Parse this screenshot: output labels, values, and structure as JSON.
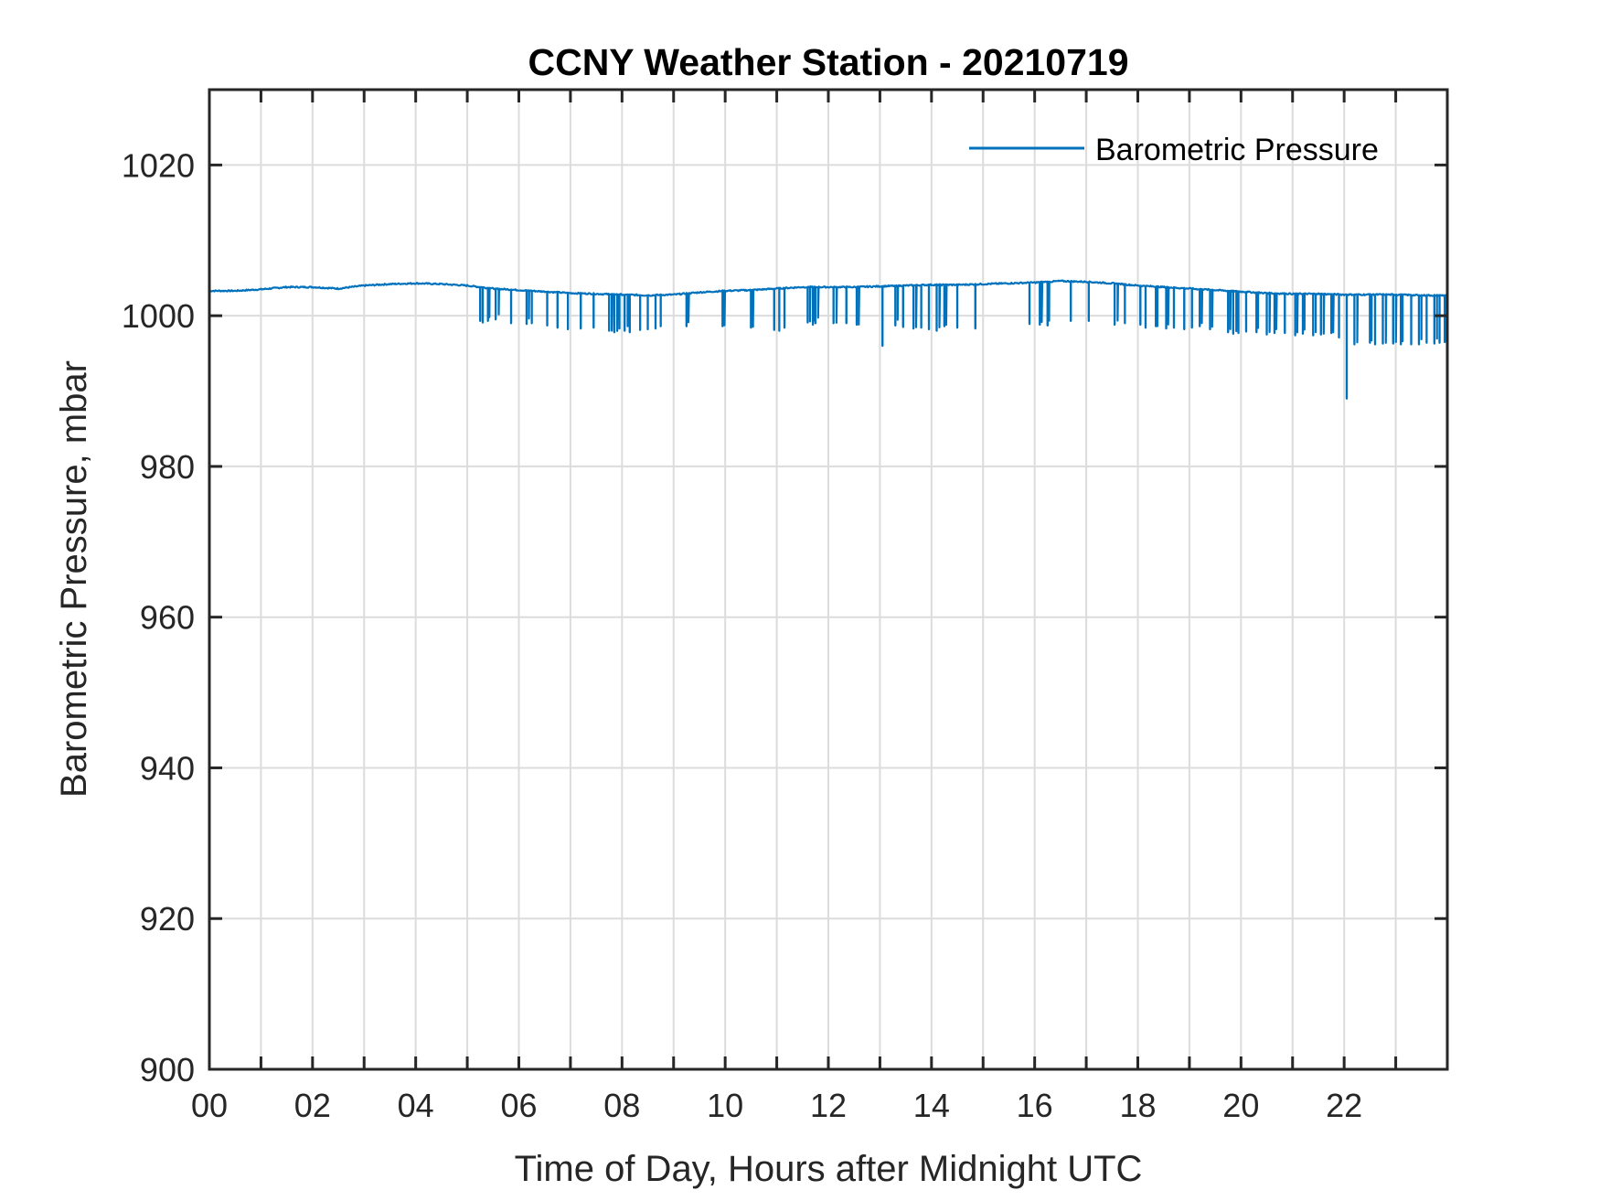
{
  "chart_data": {
    "type": "line",
    "title": "CCNY Weather Station - 20210719",
    "xlabel": "Time of Day, Hours after Midnight UTC",
    "ylabel": "Barometric Pressure, mbar",
    "xlim": [
      0,
      24
    ],
    "ylim": [
      900,
      1030
    ],
    "xticks": [
      0,
      2,
      4,
      6,
      8,
      10,
      12,
      14,
      16,
      18,
      20,
      22
    ],
    "xtick_labels": [
      "00",
      "02",
      "04",
      "06",
      "08",
      "10",
      "12",
      "14",
      "16",
      "18",
      "20",
      "22"
    ],
    "xminor_ticks_every": 1,
    "yticks": [
      900,
      920,
      940,
      960,
      980,
      1000,
      1020
    ],
    "ytick_labels": [
      "900",
      "920",
      "940",
      "960",
      "980",
      "1000",
      "1020"
    ],
    "grid": true,
    "legend": {
      "position": "top-right",
      "entries": [
        "Barometric Pressure"
      ]
    },
    "series": [
      {
        "name": "Barometric Pressure",
        "color": "#0072BD",
        "baseline": {
          "x": [
            0,
            0.5,
            1,
            1.5,
            2,
            2.5,
            3,
            3.5,
            4,
            4.5,
            5,
            5.5,
            6,
            6.5,
            7,
            7.5,
            8,
            8.5,
            9,
            9.5,
            10,
            10.5,
            11,
            11.5,
            12,
            12.5,
            13,
            13.5,
            14,
            14.5,
            15,
            15.5,
            16,
            16.5,
            17,
            17.5,
            18,
            18.5,
            19,
            19.5,
            20,
            20.5,
            21,
            21.5,
            22,
            22.5,
            23,
            23.5,
            24
          ],
          "y": [
            1003.3,
            1003.3,
            1003.5,
            1003.8,
            1003.8,
            1003.6,
            1004.0,
            1004.2,
            1004.3,
            1004.2,
            1004.0,
            1003.6,
            1003.4,
            1003.2,
            1003.0,
            1002.9,
            1002.8,
            1002.7,
            1002.8,
            1003.1,
            1003.3,
            1003.4,
            1003.6,
            1003.8,
            1003.8,
            1003.8,
            1003.9,
            1004.0,
            1004.1,
            1004.1,
            1004.2,
            1004.3,
            1004.4,
            1004.6,
            1004.5,
            1004.3,
            1004.0,
            1003.8,
            1003.6,
            1003.4,
            1003.2,
            1003.0,
            1002.9,
            1002.9,
            1002.8,
            1002.8,
            1002.8,
            1002.7,
            1002.7
          ]
        },
        "dips": {
          "x": [
            5.25,
            5.3,
            5.4,
            5.55,
            5.85,
            6.15,
            6.25,
            6.55,
            6.75,
            6.95,
            7.2,
            7.45,
            7.75,
            7.85,
            7.95,
            8.05,
            8.15,
            8.35,
            8.5,
            8.65,
            8.75,
            9.25,
            9.95,
            10.5,
            10.95,
            11.05,
            11.15,
            11.6,
            11.7,
            11.75,
            12.1,
            12.35,
            12.55,
            13.05,
            13.3,
            13.45,
            13.65,
            13.8,
            13.95,
            14.1,
            14.25,
            14.5,
            14.85,
            15.9,
            16.1,
            16.25,
            16.7,
            17.05,
            17.55,
            17.75,
            18.05,
            18.15,
            18.35,
            18.55,
            18.7,
            18.9,
            19.05,
            19.2,
            19.4,
            19.75,
            19.85,
            19.95,
            20.1,
            20.3,
            20.5,
            20.65,
            20.85,
            21.05,
            21.2,
            21.4,
            21.55,
            21.75,
            21.9,
            22.05,
            22.2,
            22.5,
            22.6,
            22.75,
            22.95,
            23.1,
            23.3,
            23.45,
            23.6,
            23.75,
            23.85,
            23.95
          ],
          "y": [
            999.3,
            999.1,
            999.3,
            999.5,
            999.0,
            998.9,
            999.0,
            998.7,
            998.4,
            998.2,
            998.3,
            998.4,
            998.0,
            997.8,
            998.3,
            998.0,
            997.8,
            998.1,
            998.2,
            998.3,
            998.6,
            998.6,
            998.6,
            998.4,
            998.1,
            998.0,
            998.4,
            999.1,
            998.8,
            999.0,
            999.0,
            999.0,
            998.8,
            996.0,
            998.7,
            998.5,
            998.3,
            998.4,
            998.2,
            998.0,
            998.6,
            998.4,
            998.3,
            998.9,
            998.8,
            998.7,
            999.3,
            999.3,
            998.8,
            999.0,
            998.8,
            998.4,
            998.6,
            998.3,
            998.4,
            998.2,
            998.4,
            998.6,
            998.2,
            997.8,
            997.6,
            997.7,
            997.9,
            997.8,
            997.5,
            997.7,
            997.7,
            997.4,
            997.6,
            997.4,
            997.5,
            997.7,
            997.1,
            989.0,
            996.2,
            996.4,
            996.2,
            996.3,
            996.3,
            996.2,
            996.2,
            996.2,
            996.4,
            996.3,
            996.4,
            996.5
          ]
        },
        "ylim_range_shown": [
          989.0,
          1004.6
        ]
      }
    ]
  }
}
